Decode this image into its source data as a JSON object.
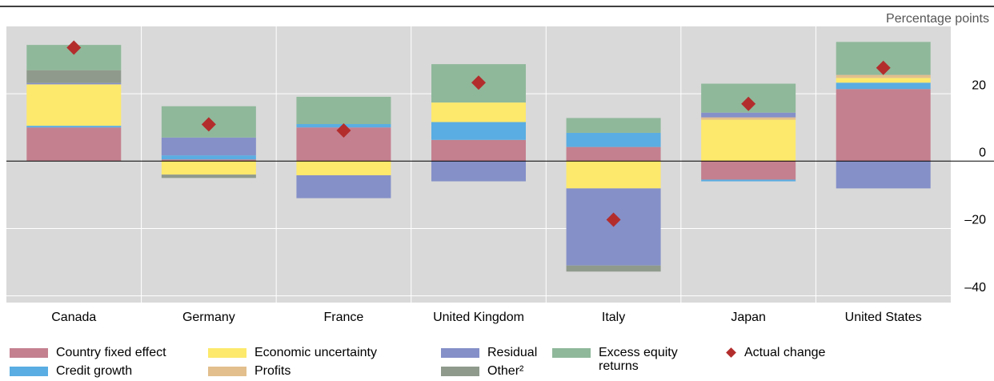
{
  "chart_data": {
    "type": "stacked_bar",
    "axis_label": "Percentage points",
    "categories": [
      "Canada",
      "Germany",
      "France",
      "United Kingdom",
      "Italy",
      "Japan",
      "United States"
    ],
    "series": [
      {
        "name": "Country fixed effect",
        "color": "#c4808f",
        "values": [
          10,
          0.5,
          10,
          6.3,
          4.2,
          -5.5,
          21.4
        ]
      },
      {
        "name": "Credit growth",
        "color": "#5aade2",
        "values": [
          0.5,
          1.2,
          1,
          5.3,
          4.2,
          -0.5,
          1.9
        ]
      },
      {
        "name": "Economic uncertainty",
        "color": "#fde96c",
        "values": [
          12.3,
          -4,
          -4.2,
          5.8,
          -8.1,
          12.3,
          1.4
        ]
      },
      {
        "name": "Profits",
        "color": "#e2bf8d",
        "values": [
          0,
          0,
          0,
          0,
          0,
          0.7,
          0.9
        ]
      },
      {
        "name": "Residual",
        "color": "#8590c8",
        "values": [
          0.4,
          5.3,
          -6.8,
          -6,
          -22.9,
          1.4,
          -8.1
        ]
      },
      {
        "name": "Other²",
        "color": "#8f9a8c",
        "values": [
          3.8,
          -1,
          0,
          0,
          -1.8,
          0,
          0
        ]
      },
      {
        "name": "Excess equity returns",
        "color": "#8fb89a",
        "values": [
          7.5,
          9.3,
          8.1,
          11.4,
          4.4,
          8.6,
          9.8
        ]
      }
    ],
    "actual": {
      "name": "Actual change",
      "color": "#b32d2d",
      "values": [
        33.7,
        10.9,
        9.1,
        23.3,
        -17.4,
        17,
        27.7
      ]
    },
    "ylim": [
      -42,
      40
    ],
    "yticks": [
      {
        "value": -40,
        "label": "–40"
      },
      {
        "value": -20,
        "label": "–20"
      },
      0,
      20
    ],
    "grid": true
  }
}
